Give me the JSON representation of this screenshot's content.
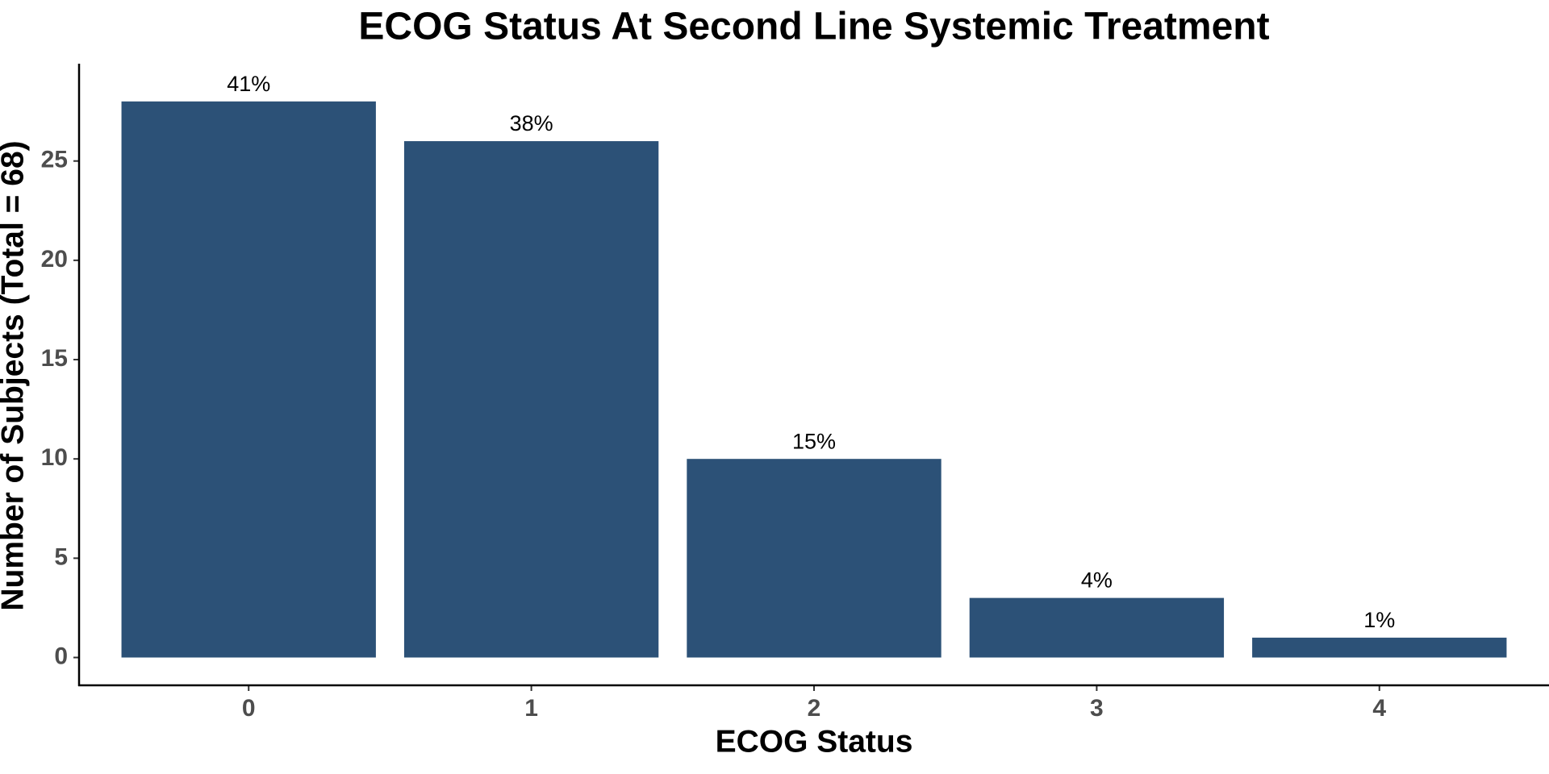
{
  "chart_data": {
    "type": "bar",
    "title": "ECOG Status At Second Line Systemic Treatment",
    "x_label": "ECOG Status",
    "y_label": "Number of Subjects (Total = 68)",
    "categories": [
      "0",
      "1",
      "2",
      "3",
      "4"
    ],
    "values": [
      28,
      26,
      10,
      3,
      1
    ],
    "percent_labels": [
      "41%",
      "38%",
      "15%",
      "4%",
      "1%"
    ],
    "color": "#2c5177",
    "ylim": [
      -1.4,
      29.9
    ],
    "yticks": [
      0,
      5,
      10,
      15,
      20,
      25
    ],
    "grid": false
  }
}
